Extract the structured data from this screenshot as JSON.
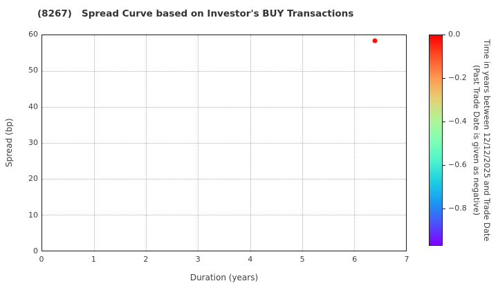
{
  "chart_data": {
    "type": "scatter",
    "title": "(8267)   Spread Curve based on Investor's BUY Transactions",
    "xlabel": "Duration (years)",
    "ylabel": "Spread (bp)",
    "xlim": [
      0,
      7
    ],
    "ylim": [
      0,
      60
    ],
    "xticks": [
      0,
      1,
      2,
      3,
      4,
      5,
      6,
      7
    ],
    "yticks": [
      0,
      10,
      20,
      30,
      40,
      50,
      60
    ],
    "grid": true,
    "grid_style": "dotted",
    "legend": "none",
    "points": [
      {
        "x": 6.4,
        "y": 58.5,
        "color_value": 0.0,
        "color": "#ff1200"
      }
    ],
    "colorbar": {
      "colormap": "rainbow",
      "vmax": 0.0,
      "vmin": -0.97,
      "ticks": [
        {
          "value": 0.0,
          "label": "0.0"
        },
        {
          "value": -0.2,
          "label": "−0.2"
        },
        {
          "value": -0.4,
          "label": "−0.4"
        },
        {
          "value": -0.6,
          "label": "−0.6"
        },
        {
          "value": -0.8,
          "label": "−0.8"
        }
      ],
      "label_line1": "Time in years between 12/12/2025 and Trade Date",
      "label_line2": "(Past Trade Date is given as negative)"
    }
  }
}
